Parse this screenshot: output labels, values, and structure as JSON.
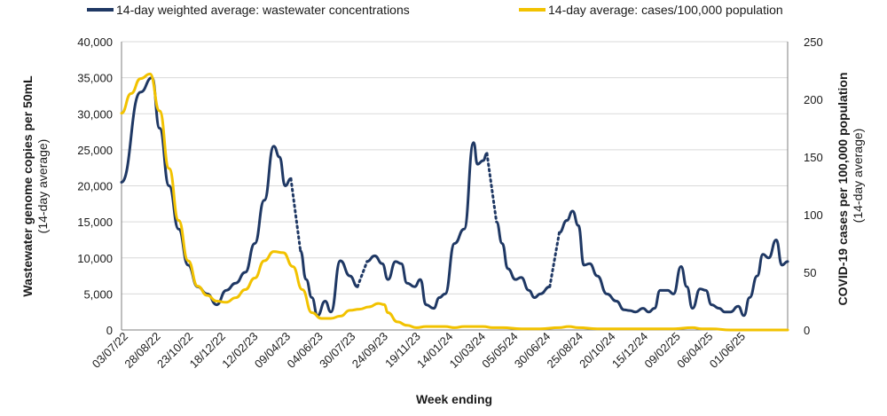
{
  "chart_data": {
    "type": "line",
    "title": "",
    "xlabel": "Week ending",
    "ylabel_left": "Wastewater genome copies per 50mL",
    "ylabel_left_sub": "(14-day average)",
    "ylabel_right": "COVID-19 cases per 100,000 population",
    "ylabel_right_sub": "(14-day average)",
    "ylim_left": [
      0,
      40000
    ],
    "ylim_right": [
      0,
      250
    ],
    "left_ticks": [
      "0",
      "5,000",
      "10,000",
      "15,000",
      "20,000",
      "25,000",
      "30,000",
      "35,000",
      "40,000"
    ],
    "right_ticks": [
      "0",
      "50",
      "100",
      "150",
      "200",
      "250"
    ],
    "x_ticks": [
      "03/07/22",
      "28/08/22",
      "23/10/22",
      "18/12/22",
      "12/02/23",
      "09/04/23",
      "04/06/23",
      "30/07/23",
      "24/09/23",
      "19/11/23",
      "14/01/24",
      "10/03/24",
      "05/05/24",
      "30/06/24",
      "25/08/24",
      "20/10/24",
      "15/12/24",
      "09/02/25",
      "06/04/25",
      "01/06/25"
    ],
    "grid": true,
    "legend_position": "top",
    "series": [
      {
        "name": "14-day weighted average: wastewater concentrations",
        "axis": "left",
        "color": "#1f3864",
        "points": [
          [
            0,
            20500
          ],
          [
            1,
            33000
          ],
          [
            1.6,
            35000
          ],
          [
            2,
            28000
          ],
          [
            2.5,
            20000
          ],
          [
            3,
            14000
          ],
          [
            3.5,
            9000
          ],
          [
            4,
            6000
          ],
          [
            4.5,
            5000
          ],
          [
            5,
            3500
          ],
          [
            5.5,
            5500
          ],
          [
            6,
            6500
          ],
          [
            6.5,
            8000
          ],
          [
            7,
            12000
          ],
          [
            7.5,
            18000
          ],
          [
            8,
            25500
          ],
          [
            8.3,
            24000
          ],
          [
            8.6,
            20000
          ],
          [
            8.9,
            21000
          ],
          [
            9,
            null
          ],
          [
            9.4,
            11000
          ],
          [
            9.7,
            7000
          ],
          [
            10,
            4500
          ],
          [
            10.3,
            2000
          ],
          [
            10.7,
            4000
          ],
          [
            11,
            2500
          ],
          [
            11.5,
            9600
          ],
          [
            12,
            7500
          ],
          [
            12.4,
            6000
          ],
          [
            12.6,
            null
          ],
          [
            12.9,
            9500
          ],
          [
            13.3,
            10300
          ],
          [
            13.7,
            9200
          ],
          [
            14,
            7000
          ],
          [
            14.4,
            9500
          ],
          [
            14.7,
            9200
          ],
          [
            15,
            6500
          ],
          [
            15.4,
            6000
          ],
          [
            15.7,
            7000
          ],
          [
            16,
            3500
          ],
          [
            16.4,
            3000
          ],
          [
            16.7,
            4500
          ],
          [
            17,
            5000
          ],
          [
            17.5,
            12000
          ],
          [
            18,
            14000
          ],
          [
            18.5,
            26000
          ],
          [
            18.7,
            23000
          ],
          [
            19,
            23500
          ],
          [
            19.2,
            24500
          ],
          [
            19.3,
            null
          ],
          [
            19.7,
            15000
          ],
          [
            20,
            12000
          ],
          [
            20.3,
            8500
          ],
          [
            20.7,
            7000
          ],
          [
            21,
            7300
          ],
          [
            21.4,
            5500
          ],
          [
            21.7,
            4500
          ],
          [
            22,
            5000
          ],
          [
            22.5,
            6000
          ],
          [
            22.6,
            null
          ],
          [
            23,
            13500
          ],
          [
            23.4,
            15200
          ],
          [
            23.7,
            16500
          ],
          [
            24,
            14500
          ],
          [
            24.3,
            9000
          ],
          [
            24.6,
            9200
          ],
          [
            25,
            7500
          ],
          [
            25.5,
            5000
          ],
          [
            26,
            4000
          ],
          [
            26.4,
            2800
          ],
          [
            26.7,
            2700
          ],
          [
            27,
            2500
          ],
          [
            27.4,
            3000
          ],
          [
            27.7,
            2500
          ],
          [
            28,
            3000
          ],
          [
            28.3,
            5500
          ],
          [
            28.7,
            5500
          ],
          [
            29,
            5000
          ],
          [
            29.4,
            8800
          ],
          [
            29.7,
            6000
          ],
          [
            30,
            3000
          ],
          [
            30.4,
            5700
          ],
          [
            30.7,
            5500
          ],
          [
            31,
            3500
          ],
          [
            31.4,
            3000
          ],
          [
            31.7,
            2500
          ],
          [
            32,
            2500
          ],
          [
            32.4,
            3300
          ],
          [
            32.7,
            2000
          ],
          [
            33,
            4500
          ],
          [
            33.4,
            7500
          ],
          [
            33.7,
            10500
          ],
          [
            34,
            10000
          ],
          [
            34.4,
            12500
          ],
          [
            34.7,
            9000
          ],
          [
            35,
            9500
          ]
        ]
      },
      {
        "name": "14-day average: cases/100,000 population",
        "axis": "right",
        "color": "#f2c200",
        "points": [
          [
            0,
            188
          ],
          [
            0.5,
            205
          ],
          [
            1,
            218
          ],
          [
            1.5,
            222
          ],
          [
            2,
            190
          ],
          [
            2.5,
            140
          ],
          [
            3,
            95
          ],
          [
            3.5,
            60
          ],
          [
            4,
            38
          ],
          [
            4.5,
            30
          ],
          [
            5,
            25
          ],
          [
            5.5,
            24
          ],
          [
            6,
            28
          ],
          [
            6.5,
            35
          ],
          [
            7,
            45
          ],
          [
            7.5,
            60
          ],
          [
            8,
            68
          ],
          [
            8.5,
            67
          ],
          [
            9,
            55
          ],
          [
            9.5,
            35
          ],
          [
            10,
            15
          ],
          [
            10.5,
            10
          ],
          [
            11,
            10
          ],
          [
            11.5,
            12
          ],
          [
            12,
            17
          ],
          [
            12.5,
            18
          ],
          [
            13,
            20
          ],
          [
            13.5,
            23
          ],
          [
            13.8,
            22
          ],
          [
            14,
            15
          ],
          [
            14.5,
            7
          ],
          [
            15,
            4
          ],
          [
            15.5,
            2
          ],
          [
            16,
            3
          ],
          [
            16.5,
            3
          ],
          [
            17,
            3
          ],
          [
            17.5,
            2
          ],
          [
            18,
            3
          ],
          [
            18.5,
            3
          ],
          [
            19,
            3
          ],
          [
            19.5,
            2
          ],
          [
            20,
            2
          ],
          [
            21,
            1
          ],
          [
            22,
            1
          ],
          [
            23,
            2
          ],
          [
            23.5,
            3
          ],
          [
            24,
            2
          ],
          [
            25,
            1
          ],
          [
            26,
            1
          ],
          [
            27,
            1
          ],
          [
            28,
            1
          ],
          [
            29,
            1
          ],
          [
            30,
            2
          ],
          [
            30.5,
            1
          ],
          [
            31,
            1
          ],
          [
            32,
            0
          ],
          [
            33,
            0
          ],
          [
            34,
            0
          ],
          [
            35,
            0
          ]
        ]
      }
    ]
  }
}
